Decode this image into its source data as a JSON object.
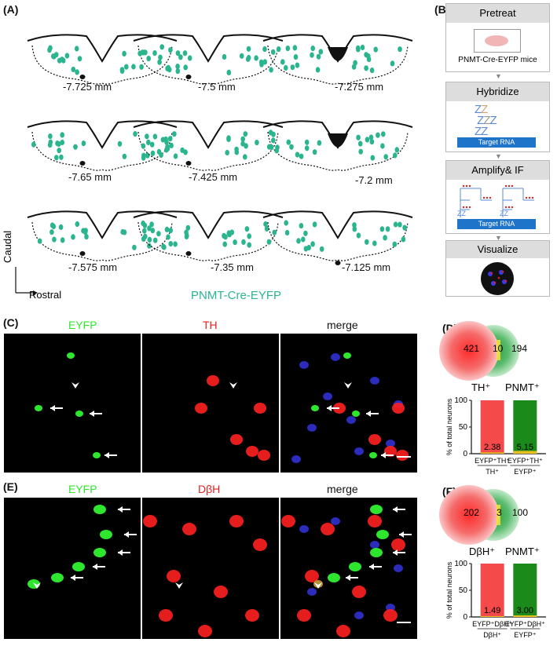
{
  "panels": {
    "A": "(A)",
    "B": "(B)",
    "C": "(C)",
    "D": "(D)",
    "E": "(E)",
    "F": "(F)"
  },
  "section_a": {
    "levels": [
      "-7.725 mm",
      "-7.5 mm",
      "-7.275 mm",
      "-7.65 mm",
      "-7.425 mm",
      "-7.2 mm",
      "-7.575 mm",
      "-7.35 mm",
      "-7.125 mm"
    ],
    "axis_caudal": "Caudal",
    "axis_rostral": "Rostral",
    "legend": "PNMT-Cre-EYFP",
    "dot_color": "#2bb58f"
  },
  "section_b": {
    "steps": [
      {
        "title": "Pretreat",
        "caption": "PNMT-Cre-EYFP mice"
      },
      {
        "title": "Hybridize",
        "caption": "Target RNA"
      },
      {
        "title": "Amplify& IF",
        "caption": "Target RNA"
      },
      {
        "title": "Visualize",
        "caption": ""
      }
    ]
  },
  "section_c": {
    "channels": [
      "EYFP",
      "TH",
      "merge"
    ],
    "colors": {
      "eyfp": "#2ee82e",
      "th": "#e82020",
      "merge": "#111"
    }
  },
  "section_e": {
    "channels": [
      "EYFP",
      "DβH",
      "merge"
    ]
  },
  "venn_d": {
    "left_count": "421",
    "overlap": "10",
    "right_count": "194",
    "left_label": "TH⁺",
    "right_label": "PNMT⁺"
  },
  "venn_f": {
    "left_count": "202",
    "overlap": "3",
    "right_count": "100",
    "left_label": "DβH⁺",
    "right_label": "PNMT⁺"
  },
  "chart_data": [
    {
      "type": "bar",
      "ylabel": "% of total neurons",
      "ylim": [
        0,
        100
      ],
      "yticks": [
        "0",
        "50",
        "100"
      ],
      "categories": [
        "EYFP⁺TH⁺ / TH⁺",
        "EYFP⁺TH⁺ / EYFP⁺"
      ],
      "cat_top": [
        "EYFP⁺TH⁺",
        "EYFP⁺TH⁺"
      ],
      "cat_bottom": [
        "TH⁺",
        "EYFP⁺"
      ],
      "values": [
        2.38,
        5.15
      ],
      "value_labels": [
        "2.38",
        "5.15"
      ],
      "bar_colors": [
        "#f44a4a",
        "#1a8a1a"
      ],
      "overlap_color": "#e8c020"
    },
    {
      "type": "bar",
      "ylabel": "% of total neurons",
      "ylim": [
        0,
        100
      ],
      "yticks": [
        "0",
        "50",
        "100"
      ],
      "categories": [
        "EYFP⁺DβH⁺ / DβH⁺",
        "EYFP⁺DβH⁺ / EYFP⁺"
      ],
      "cat_top": [
        "EYFP⁺DβH⁺",
        "EYFP⁺DβH⁺"
      ],
      "cat_bottom": [
        "DβH⁺",
        "EYFP⁺"
      ],
      "values": [
        1.49,
        3.0
      ],
      "value_labels": [
        "1.49",
        "3.00"
      ],
      "bar_colors": [
        "#f44a4a",
        "#1a8a1a"
      ],
      "overlap_color": "#e8c020"
    }
  ]
}
